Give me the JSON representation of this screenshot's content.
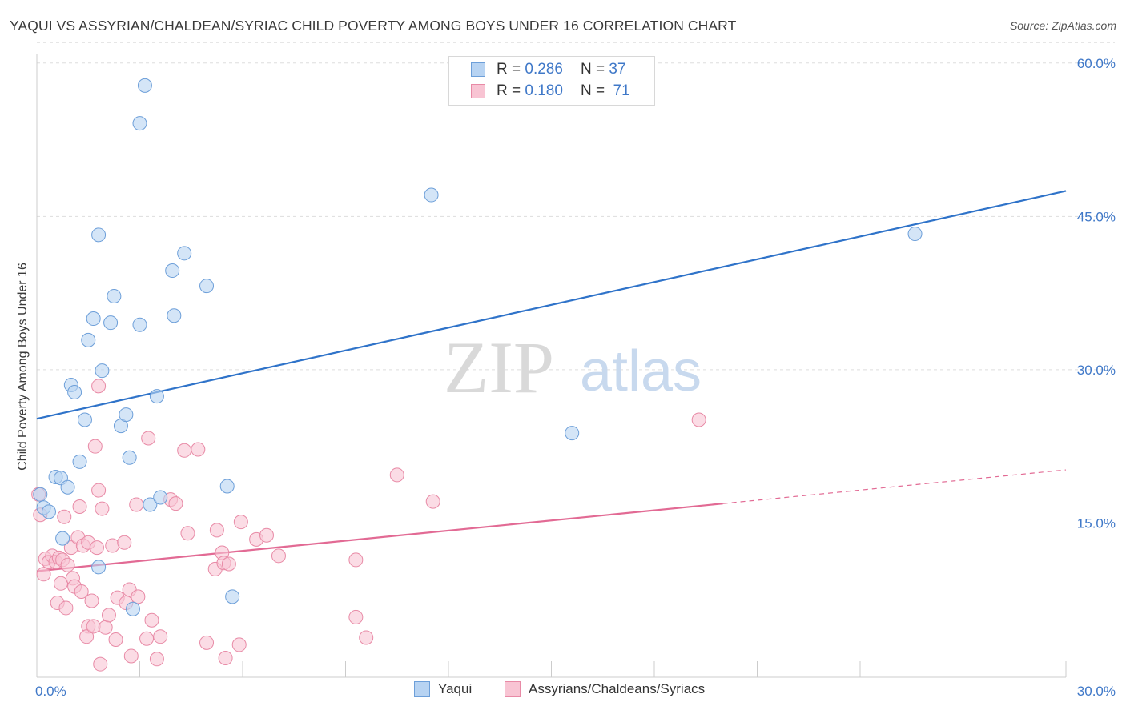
{
  "title": "YAQUI VS ASSYRIAN/CHALDEAN/SYRIAC CHILD POVERTY AMONG BOYS UNDER 16 CORRELATION CHART",
  "source": "Source: ZipAtlas.com",
  "watermark": {
    "zip": "ZIP",
    "atlas": "atlas"
  },
  "colors": {
    "blue_fill": "#b7d3f2",
    "blue_stroke": "#6d9fd9",
    "blue_line": "#2f73c9",
    "pink_fill": "#f8c4d3",
    "pink_stroke": "#e88aa6",
    "pink_line": "#e26a94",
    "tick_label": "#3f78c8",
    "grid": "#dddddd"
  },
  "legend": [
    {
      "r_label": "R =",
      "r_value": "0.286",
      "n_label": "N =",
      "n_value": "37"
    },
    {
      "r_label": "R =",
      "r_value": "0.180",
      "n_label": "N =",
      "n_value": "71"
    }
  ],
  "bottom_legend": [
    "Yaqui",
    "Assyrians/Chaldeans/Syriacs"
  ],
  "chart_data": {
    "type": "scatter",
    "title": "YAQUI VS ASSYRIAN/CHALDEAN/SYRIAC CHILD POVERTY AMONG BOYS UNDER 16 CORRELATION CHART",
    "xlabel": "",
    "ylabel": "Child Poverty Among Boys Under 16",
    "xlim": [
      0,
      30
    ],
    "ylim": [
      0,
      62
    ],
    "x_tick_labels": [
      "0.0%",
      "30.0%"
    ],
    "y_ticks": [
      15,
      30,
      45,
      60
    ],
    "y_tick_labels": [
      "15.0%",
      "30.0%",
      "45.0%",
      "60.0%"
    ],
    "grid": "dashed horizontal",
    "legend_position": "top-center",
    "series": [
      {
        "name": "Yaqui",
        "color": "#6d9fd9",
        "r": 0.286,
        "n": 37,
        "trend": {
          "x": [
            0,
            30
          ],
          "y": [
            25.2,
            47.5
          ],
          "style": "solid"
        },
        "points": [
          [
            0.1,
            17.8
          ],
          [
            0.2,
            16.5
          ],
          [
            0.35,
            16.1
          ],
          [
            0.55,
            19.5
          ],
          [
            0.7,
            19.4
          ],
          [
            0.9,
            18.5
          ],
          [
            0.75,
            13.5
          ],
          [
            1.0,
            28.5
          ],
          [
            1.1,
            27.8
          ],
          [
            1.25,
            21.0
          ],
          [
            1.4,
            25.1
          ],
          [
            1.5,
            32.9
          ],
          [
            1.65,
            35.0
          ],
          [
            1.8,
            43.2
          ],
          [
            1.9,
            29.9
          ],
          [
            2.15,
            34.6
          ],
          [
            2.25,
            37.2
          ],
          [
            2.45,
            24.5
          ],
          [
            2.6,
            25.6
          ],
          [
            2.7,
            21.4
          ],
          [
            2.8,
            6.6
          ],
          [
            3.0,
            54.1
          ],
          [
            3.0,
            34.4
          ],
          [
            3.15,
            57.8
          ],
          [
            3.3,
            16.8
          ],
          [
            3.5,
            27.4
          ],
          [
            3.6,
            17.5
          ],
          [
            3.95,
            39.7
          ],
          [
            4.0,
            35.3
          ],
          [
            4.3,
            41.4
          ],
          [
            4.95,
            38.2
          ],
          [
            1.8,
            10.7
          ],
          [
            5.55,
            18.6
          ],
          [
            5.7,
            7.8
          ],
          [
            11.5,
            47.1
          ],
          [
            15.6,
            23.8
          ],
          [
            25.6,
            43.3
          ]
        ]
      },
      {
        "name": "Assyrians/Chaldeans/Syriacs",
        "color": "#e88aa6",
        "r": 0.18,
        "n": 71,
        "trend": {
          "x": [
            0,
            20
          ],
          "y": [
            10.3,
            16.9
          ],
          "style": "solid",
          "extension": {
            "x": [
              20,
              30
            ],
            "y": [
              16.9,
              20.2
            ],
            "style": "dashed"
          }
        },
        "points": [
          [
            0.05,
            17.8
          ],
          [
            0.1,
            15.8
          ],
          [
            0.2,
            10.0
          ],
          [
            0.25,
            11.5
          ],
          [
            0.35,
            11.2
          ],
          [
            0.45,
            11.8
          ],
          [
            0.55,
            11.2
          ],
          [
            0.6,
            7.2
          ],
          [
            0.65,
            11.6
          ],
          [
            0.7,
            9.1
          ],
          [
            0.75,
            11.4
          ],
          [
            0.8,
            15.6
          ],
          [
            0.85,
            6.7
          ],
          [
            0.9,
            10.9
          ],
          [
            1.0,
            12.6
          ],
          [
            1.05,
            9.6
          ],
          [
            1.1,
            8.8
          ],
          [
            1.2,
            13.6
          ],
          [
            1.25,
            16.6
          ],
          [
            1.3,
            8.3
          ],
          [
            1.35,
            12.8
          ],
          [
            1.5,
            13.1
          ],
          [
            1.5,
            4.9
          ],
          [
            1.45,
            3.9
          ],
          [
            1.6,
            7.4
          ],
          [
            1.65,
            4.9
          ],
          [
            1.7,
            22.5
          ],
          [
            1.75,
            12.6
          ],
          [
            1.8,
            18.2
          ],
          [
            1.85,
            1.2
          ],
          [
            1.9,
            16.4
          ],
          [
            2.0,
            4.8
          ],
          [
            2.1,
            6.0
          ],
          [
            2.2,
            12.8
          ],
          [
            2.3,
            3.6
          ],
          [
            2.35,
            7.7
          ],
          [
            2.55,
            13.1
          ],
          [
            2.6,
            7.2
          ],
          [
            2.7,
            8.5
          ],
          [
            2.75,
            2.0
          ],
          [
            2.9,
            16.8
          ],
          [
            2.95,
            7.8
          ],
          [
            3.2,
            3.7
          ],
          [
            3.25,
            23.3
          ],
          [
            3.35,
            5.5
          ],
          [
            3.5,
            1.7
          ],
          [
            3.6,
            3.9
          ],
          [
            3.9,
            17.3
          ],
          [
            4.05,
            16.9
          ],
          [
            4.3,
            22.1
          ],
          [
            4.4,
            14.0
          ],
          [
            4.7,
            22.2
          ],
          [
            4.95,
            3.3
          ],
          [
            5.2,
            10.5
          ],
          [
            5.25,
            14.3
          ],
          [
            5.4,
            12.1
          ],
          [
            5.45,
            11.1
          ],
          [
            5.5,
            1.8
          ],
          [
            5.6,
            11.0
          ],
          [
            5.9,
            3.1
          ],
          [
            5.95,
            15.1
          ],
          [
            6.4,
            13.4
          ],
          [
            6.7,
            13.8
          ],
          [
            7.05,
            11.8
          ],
          [
            1.8,
            28.4
          ],
          [
            9.3,
            5.8
          ],
          [
            9.3,
            11.4
          ],
          [
            9.6,
            3.8
          ],
          [
            10.5,
            19.7
          ],
          [
            11.55,
            17.1
          ],
          [
            19.3,
            25.1
          ]
        ]
      }
    ]
  }
}
